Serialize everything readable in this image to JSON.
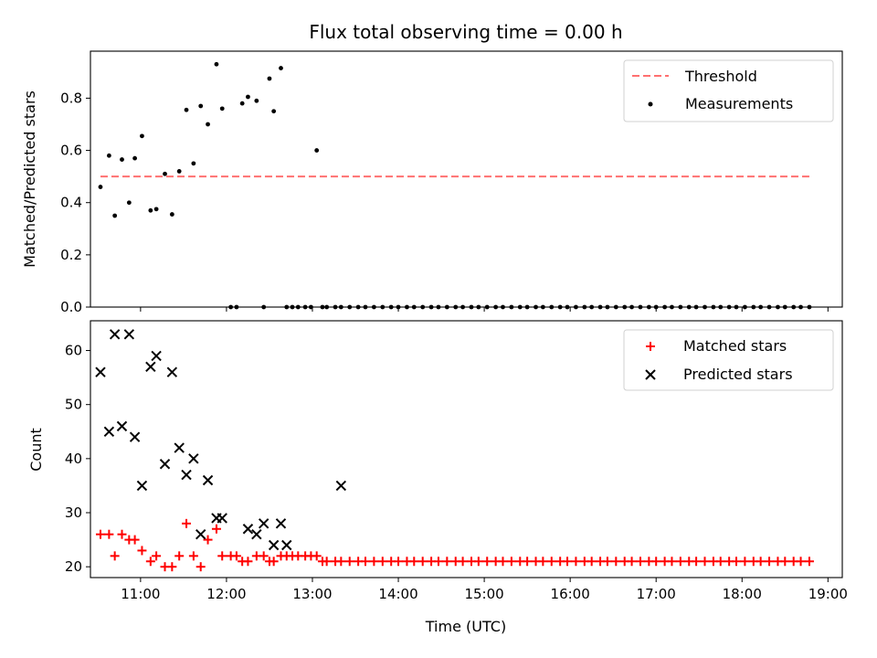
{
  "figure": {
    "title": "Flux total observing time = 0.00 h",
    "xlabel": "Time (UTC)",
    "x_ticks": [
      "11:00",
      "12:00",
      "13:00",
      "14:00",
      "15:00",
      "16:00",
      "17:00",
      "18:00",
      "19:00"
    ],
    "top": {
      "ylabel": "Matched/Predicted stars",
      "y_ticks": [
        "0.0",
        "0.2",
        "0.4",
        "0.6",
        "0.8"
      ],
      "legend": {
        "threshold": "Threshold",
        "measurements": "Measurements"
      }
    },
    "bottom": {
      "ylabel": "Count",
      "y_ticks": [
        "20",
        "30",
        "40",
        "50",
        "60"
      ],
      "legend": {
        "matched": "Matched stars",
        "predicted": "Predicted stars"
      }
    }
  },
  "colors": {
    "threshold": "#ff7070",
    "measurements": "#000000",
    "matched": "#ff0000",
    "predicted": "#000000"
  },
  "chart_data": [
    {
      "type": "scatter",
      "title": "Flux total observing time = 0.00 h",
      "xlabel": "",
      "ylabel": "Matched/Predicted stars",
      "x_unit": "time (UTC)",
      "xlim": [
        "10:25",
        "19:10"
      ],
      "ylim": [
        0.0,
        0.98
      ],
      "legend_position": "top-right",
      "threshold": {
        "name": "Threshold",
        "y": 0.5,
        "x_range": [
          "10:32",
          "18:47"
        ]
      },
      "series": [
        {
          "name": "Measurements",
          "x": [
            "10:32",
            "10:38",
            "10:42",
            "10:47",
            "10:52",
            "10:56",
            "11:01",
            "11:07",
            "11:11",
            "11:17",
            "11:22",
            "11:27",
            "11:32",
            "11:37",
            "11:42",
            "11:47",
            "11:53",
            "11:57",
            "12:03",
            "12:07",
            "12:11",
            "12:15",
            "12:21",
            "12:26",
            "12:30",
            "12:33",
            "12:38",
            "12:42",
            "12:46",
            "12:50",
            "12:55",
            "12:59",
            "13:03",
            "13:07",
            "13:10",
            "13:16",
            "13:20",
            "13:26",
            "13:32",
            "13:37",
            "13:43",
            "13:49",
            "13:55",
            "14:00",
            "14:06",
            "14:11",
            "14:17",
            "14:23",
            "14:28",
            "14:34",
            "14:40",
            "14:45",
            "14:51",
            "14:56",
            "15:02",
            "15:08",
            "15:13",
            "15:19",
            "15:25",
            "15:30",
            "15:36",
            "15:41",
            "15:47",
            "15:53",
            "15:58",
            "16:04",
            "16:10",
            "16:15",
            "16:21",
            "16:26",
            "16:32",
            "16:38",
            "16:43",
            "16:49",
            "16:55",
            "17:00",
            "17:06",
            "17:11",
            "17:17",
            "17:23",
            "17:28",
            "17:34",
            "17:40",
            "17:45",
            "17:51",
            "17:56",
            "18:02",
            "18:08",
            "18:13",
            "18:19",
            "18:25",
            "18:30",
            "18:36",
            "18:41",
            "18:47"
          ],
          "y": [
            0.46,
            0.58,
            0.35,
            0.565,
            0.4,
            0.57,
            0.655,
            0.37,
            0.375,
            0.51,
            0.355,
            0.52,
            0.755,
            0.55,
            0.77,
            0.7,
            0.93,
            0.76,
            0.0,
            0.0,
            0.78,
            0.805,
            0.79,
            0.0,
            0.875,
            0.75,
            0.915,
            0.0,
            0.0,
            0.0,
            0.0,
            0.0,
            0.6,
            0.0,
            0.0,
            0.0,
            0.0,
            0.0,
            0.0,
            0.0,
            0.0,
            0.0,
            0.0,
            0.0,
            0.0,
            0.0,
            0.0,
            0.0,
            0.0,
            0.0,
            0.0,
            0.0,
            0.0,
            0.0,
            0.0,
            0.0,
            0.0,
            0.0,
            0.0,
            0.0,
            0.0,
            0.0,
            0.0,
            0.0,
            0.0,
            0.0,
            0.0,
            0.0,
            0.0,
            0.0,
            0.0,
            0.0,
            0.0,
            0.0,
            0.0,
            0.0,
            0.0,
            0.0,
            0.0,
            0.0,
            0.0,
            0.0,
            0.0,
            0.0,
            0.0,
            0.0,
            0.0,
            0.0,
            0.0,
            0.0,
            0.0,
            0.0,
            0.0,
            0.0,
            0.0
          ]
        }
      ]
    },
    {
      "type": "scatter",
      "title": "",
      "xlabel": "Time (UTC)",
      "ylabel": "Count",
      "x_unit": "time (UTC)",
      "xlim": [
        "10:25",
        "19:10"
      ],
      "ylim": [
        18,
        65.5
      ],
      "legend_position": "top-right",
      "series": [
        {
          "name": "Matched stars",
          "x": [
            "10:32",
            "10:38",
            "10:42",
            "10:47",
            "10:52",
            "10:56",
            "11:01",
            "11:07",
            "11:11",
            "11:17",
            "11:22",
            "11:27",
            "11:32",
            "11:37",
            "11:42",
            "11:47",
            "11:53",
            "11:57",
            "12:03",
            "12:07",
            "12:11",
            "12:15",
            "12:21",
            "12:26",
            "12:30",
            "12:33",
            "12:38",
            "12:42",
            "12:46",
            "12:50",
            "12:55",
            "12:59",
            "13:03",
            "13:07",
            "13:10",
            "13:16",
            "13:20",
            "13:26",
            "13:32",
            "13:37",
            "13:43",
            "13:49",
            "13:55",
            "14:00",
            "14:06",
            "14:11",
            "14:17",
            "14:23",
            "14:28",
            "14:34",
            "14:40",
            "14:45",
            "14:51",
            "14:56",
            "15:02",
            "15:08",
            "15:13",
            "15:19",
            "15:25",
            "15:30",
            "15:36",
            "15:41",
            "15:47",
            "15:53",
            "15:58",
            "16:04",
            "16:10",
            "16:15",
            "16:21",
            "16:26",
            "16:32",
            "16:38",
            "16:43",
            "16:49",
            "16:55",
            "17:00",
            "17:06",
            "17:11",
            "17:17",
            "17:23",
            "17:28",
            "17:34",
            "17:40",
            "17:45",
            "17:51",
            "17:56",
            "18:02",
            "18:08",
            "18:13",
            "18:19",
            "18:25",
            "18:30",
            "18:36",
            "18:41",
            "18:47"
          ],
          "y": [
            26,
            26,
            22,
            26,
            25,
            25,
            23,
            21,
            22,
            20,
            20,
            22,
            28,
            22,
            20,
            25,
            27,
            22,
            22,
            22,
            21,
            21,
            22,
            22,
            21,
            21,
            22,
            22,
            22,
            22,
            22,
            22,
            22,
            21,
            21,
            21,
            21,
            21,
            21,
            21,
            21,
            21,
            21,
            21,
            21,
            21,
            21,
            21,
            21,
            21,
            21,
            21,
            21,
            21,
            21,
            21,
            21,
            21,
            21,
            21,
            21,
            21,
            21,
            21,
            21,
            21,
            21,
            21,
            21,
            21,
            21,
            21,
            21,
            21,
            21,
            21,
            21,
            21,
            21,
            21,
            21,
            21,
            21,
            21,
            21,
            21,
            21,
            21,
            21,
            21,
            21,
            21,
            21,
            21,
            21
          ]
        },
        {
          "name": "Predicted stars",
          "x": [
            "10:32",
            "10:38",
            "10:42",
            "10:47",
            "10:52",
            "10:56",
            "11:01",
            "11:07",
            "11:11",
            "11:17",
            "11:22",
            "11:27",
            "11:32",
            "11:37",
            "11:42",
            "11:47",
            "11:53",
            "11:57",
            "12:15",
            "12:21",
            "12:26",
            "12:33",
            "12:38",
            "12:42",
            "13:20"
          ],
          "y": [
            56,
            45,
            63,
            46,
            63,
            44,
            35,
            57,
            59,
            39,
            56,
            42,
            37,
            40,
            26,
            36,
            29,
            29,
            27,
            26,
            28,
            24,
            28,
            24,
            35
          ]
        }
      ]
    }
  ]
}
